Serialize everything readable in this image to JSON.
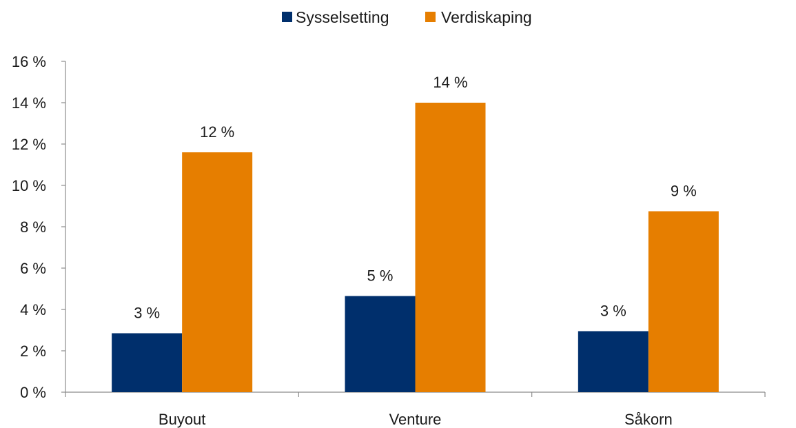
{
  "chart_data": {
    "type": "bar",
    "categories": [
      "Buyout",
      "Venture",
      "Såkorn"
    ],
    "series": [
      {
        "name": "Sysselsetting",
        "color": "#002f6c",
        "values": [
          2.85,
          4.65,
          2.95
        ],
        "labels": [
          "3 %",
          "5 %",
          "3 %"
        ]
      },
      {
        "name": "Verdiskaping",
        "color": "#e67e00",
        "values": [
          11.6,
          14.0,
          8.75
        ],
        "labels": [
          "12 %",
          "14 %",
          "9 %"
        ]
      }
    ],
    "ylim": [
      0,
      16
    ],
    "yticks": [
      0,
      2,
      4,
      6,
      8,
      10,
      12,
      14,
      16
    ],
    "ytick_labels": [
      "0 %",
      "2 %",
      "4 %",
      "6 %",
      "8 %",
      "10 %",
      "12 %",
      "14 %",
      "16 %"
    ],
    "grid": false,
    "legend_position": "top-center"
  }
}
